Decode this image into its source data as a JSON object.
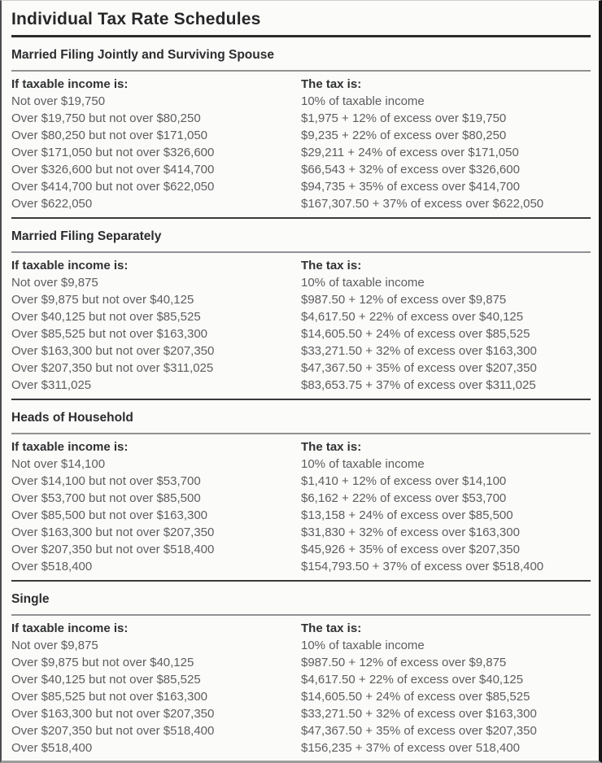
{
  "title": "Individual Tax Rate Schedules",
  "columns": {
    "income": "If taxable income is:",
    "tax": "The tax is:"
  },
  "colors": {
    "heading_text": "#28282a",
    "body_text": "#5c5d60",
    "dark_rule": "#3a3a3c",
    "gray_rule": "#8f9193",
    "page_background": "#fbfbf9"
  },
  "sections": [
    {
      "header": "Married Filing Jointly and Surviving Spouse",
      "rows": [
        {
          "income": "Not over $19,750",
          "tax": "10% of taxable income"
        },
        {
          "income": "Over $19,750 but not over $80,250",
          "tax": "$1,975 + 12% of excess over $19,750"
        },
        {
          "income": "Over $80,250 but not over $171,050",
          "tax": "$9,235 + 22% of excess over $80,250"
        },
        {
          "income": "Over $171,050 but not over $326,600",
          "tax": "$29,211 + 24% of excess over $171,050"
        },
        {
          "income": "Over $326,600 but not over $414,700",
          "tax": "$66,543 + 32% of excess over $326,600"
        },
        {
          "income": "Over $414,700 but not over $622,050",
          "tax": "$94,735 + 35% of excess over $414,700"
        },
        {
          "income": "Over $622,050",
          "tax": "$167,307.50 + 37% of excess over $622,050"
        }
      ]
    },
    {
      "header": "Married Filing Separately",
      "rows": [
        {
          "income": "Not over $9,875",
          "tax": "10% of taxable income"
        },
        {
          "income": "Over $9,875 but not over $40,125",
          "tax": "$987.50 + 12% of excess over $9,875"
        },
        {
          "income": "Over $40,125 but not over $85,525",
          "tax": "$4,617.50 + 22% of excess over $40,125"
        },
        {
          "income": "Over $85,525 but not over $163,300",
          "tax": "$14,605.50 + 24% of excess over $85,525"
        },
        {
          "income": "Over $163,300 but not over $207,350",
          "tax": "$33,271.50 + 32% of excess over $163,300"
        },
        {
          "income": "Over $207,350 but not over $311,025",
          "tax": "$47,367.50 + 35% of excess over $207,350"
        },
        {
          "income": "Over $311,025",
          "tax": "$83,653.75 + 37% of excess over $311,025"
        }
      ]
    },
    {
      "header": "Heads of Household",
      "rows": [
        {
          "income": "Not over $14,100",
          "tax": "10% of taxable income"
        },
        {
          "income": "Over $14,100 but not over $53,700",
          "tax": "$1,410 + 12% of excess over $14,100"
        },
        {
          "income": "Over $53,700 but not over $85,500",
          "tax": "$6,162 + 22% of excess over $53,700"
        },
        {
          "income": "Over $85,500 but not over $163,300",
          "tax": "$13,158 + 24% of excess over $85,500"
        },
        {
          "income": "Over $163,300 but not over $207,350",
          "tax": "$31,830 + 32% of excess over $163,300"
        },
        {
          "income": "Over $207,350 but not over $518,400",
          "tax": "$45,926 + 35% of excess over $207,350"
        },
        {
          "income": "Over $518,400",
          "tax": "$154,793.50 + 37% of excess over $518,400"
        }
      ]
    },
    {
      "header": "Single",
      "rows": [
        {
          "income": "Not over $9,875",
          "tax": "10% of taxable income"
        },
        {
          "income": "Over $9,875 but not over $40,125",
          "tax": "$987.50 + 12% of excess over $9,875"
        },
        {
          "income": "Over $40,125 but not over $85,525",
          "tax": "$4,617.50 + 22% of excess over $40,125"
        },
        {
          "income": "Over $85,525 but not over $163,300",
          "tax": "$14,605.50 + 24% of excess over $85,525"
        },
        {
          "income": "Over $163,300 but not over $207,350",
          "tax": "$33,271.50 + 32% of excess over $163,300"
        },
        {
          "income": "Over $207,350 but not over $518,400",
          "tax": "$47,367.50 + 35% of excess over $207,350"
        },
        {
          "income": "Over $518,400",
          "tax": "$156,235 + 37% of excess over 518,400"
        }
      ]
    }
  ]
}
